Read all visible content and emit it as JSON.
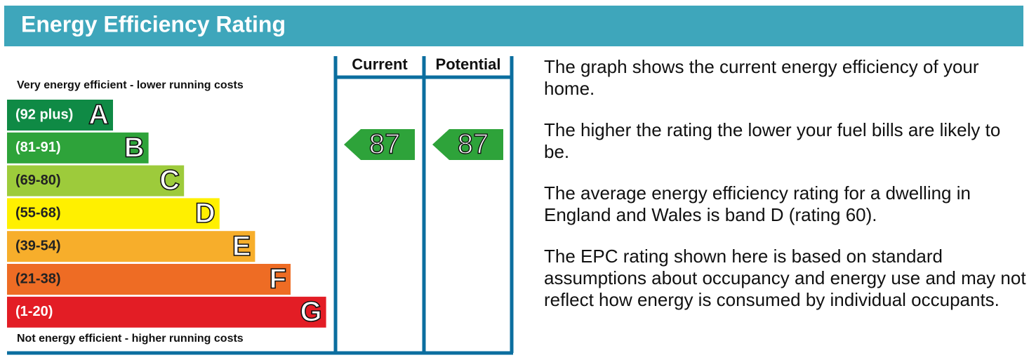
{
  "header": {
    "title": "Energy Efficiency Rating"
  },
  "scale": {
    "top_label": "Very energy efficient - lower running costs",
    "bottom_label": "Not energy efficient - higher running costs",
    "bands": [
      {
        "range": "(92 plus)",
        "letter": "A",
        "color": "#0f8a45",
        "text_color": "#ffffff"
      },
      {
        "range": "(81-91)",
        "letter": "B",
        "color": "#2ea33a",
        "text_color": "#ffffff"
      },
      {
        "range": "(69-80)",
        "letter": "C",
        "color": "#9dcb3b",
        "text_color": "#222222"
      },
      {
        "range": "(55-68)",
        "letter": "D",
        "color": "#fff000",
        "text_color": "#222222"
      },
      {
        "range": "(39-54)",
        "letter": "E",
        "color": "#f7ae2b",
        "text_color": "#222222"
      },
      {
        "range": "(21-38)",
        "letter": "F",
        "color": "#ee6c24",
        "text_color": "#222222"
      },
      {
        "range": "(1-20)",
        "letter": "G",
        "color": "#e31d25",
        "text_color": "#ffffff"
      }
    ]
  },
  "columns": {
    "current": {
      "label": "Current",
      "value": 87,
      "color": "#2ea33a"
    },
    "potential": {
      "label": "Potential",
      "value": 87,
      "color": "#2ea33a"
    }
  },
  "text": {
    "paragraphs": [
      "The graph shows the current energy efficiency of your home.",
      "The higher the rating the lower your fuel bills are likely to be.",
      "The average energy efficiency rating for a dwelling in England and Wales is band D (rating 60).",
      "The EPC rating shown here is based on standard assumptions about occupancy and energy use and may not reflect how energy is consumed by individual occupants."
    ]
  }
}
